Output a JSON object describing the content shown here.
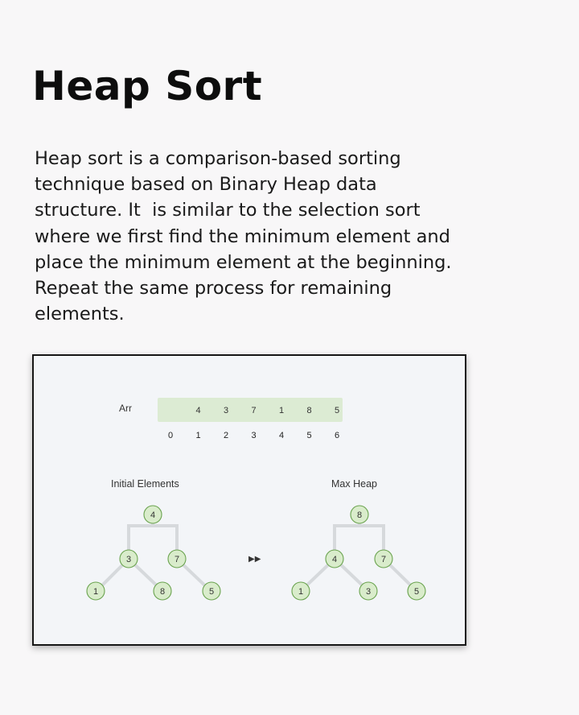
{
  "heading": "Heap Sort",
  "description": [
    "Heap sort is a comparison-based sorting",
    "technique based on Binary Heap data",
    "structure. It  is similar to the selection sort",
    "where we first find the minimum element and",
    "place the minimum element at the beginning.",
    "Repeat the same process for remaining",
    "elements."
  ],
  "figure": {
    "array_label": "Arr",
    "array_values": [
      "",
      "4",
      "3",
      "7",
      "1",
      "8",
      "5"
    ],
    "array_indices": [
      "0",
      "1",
      "2",
      "3",
      "4",
      "5",
      "6"
    ],
    "initial_caption": "Initial Elements",
    "maxheap_caption": "Max Heap",
    "arrow_glyph": "▶▶",
    "initial_tree": [
      "4",
      "3",
      "7",
      "1",
      "8",
      "5"
    ],
    "max_heap_tree": [
      "8",
      "4",
      "7",
      "1",
      "3",
      "5"
    ],
    "colors": {
      "node_fill": "#d9eccb",
      "node_stroke": "#6aa34f",
      "array_fill": "#dcebd3",
      "edge": "#d6d9dc"
    }
  }
}
